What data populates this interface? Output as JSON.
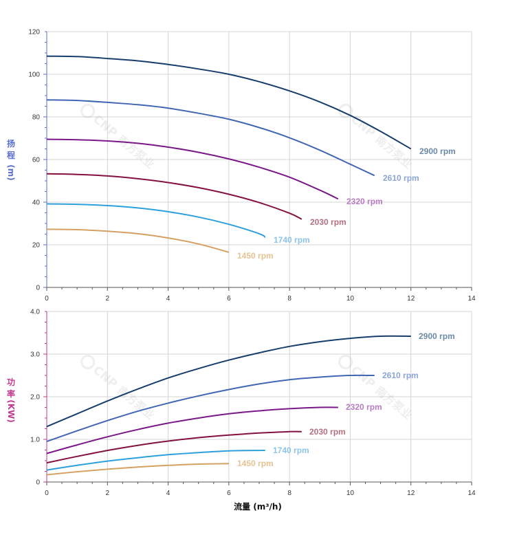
{
  "chart_data": [
    {
      "type": "line",
      "name": "head",
      "ylabel_lines": [
        "扬",
        "程",
        "(m)"
      ],
      "xlim": [
        0,
        14
      ],
      "ylim": [
        0,
        120
      ],
      "x_ticks": [
        0,
        2,
        4,
        6,
        8,
        10,
        12,
        14
      ],
      "y_ticks": [
        0,
        20,
        40,
        60,
        80,
        100,
        120
      ],
      "axis_color": "#5a6fd0",
      "grid": true,
      "series": [
        {
          "name": "2900 rpm",
          "color": "#163d6b",
          "label_color": "#6c89a8",
          "x": [
            0,
            1,
            2,
            3,
            4,
            5,
            6,
            7,
            8,
            9,
            10,
            11,
            12
          ],
          "y": [
            108.5,
            108.3,
            107.4,
            106.3,
            104.6,
            102.5,
            100.0,
            96.5,
            92.2,
            87.0,
            80.7,
            73.2,
            65.0
          ]
        },
        {
          "name": "2610 rpm",
          "color": "#3f66b2",
          "label_color": "#8ca5d6",
          "x": [
            0,
            1,
            2,
            3,
            4,
            5,
            6,
            7,
            8,
            9,
            10,
            10.8
          ],
          "y": [
            88.0,
            87.7,
            86.8,
            85.7,
            84.1,
            81.7,
            78.9,
            75.0,
            70.2,
            64.4,
            57.8,
            52.5
          ]
        },
        {
          "name": "2320 rpm",
          "color": "#7a1888",
          "label_color": "#b77cc3",
          "x": [
            0,
            1,
            2,
            3,
            4,
            5,
            6,
            7,
            8,
            9,
            9.6
          ],
          "y": [
            69.5,
            69.3,
            68.7,
            67.6,
            65.8,
            63.4,
            60.3,
            56.4,
            51.7,
            45.6,
            41.5
          ]
        },
        {
          "name": "2030 rpm",
          "color": "#84103f",
          "label_color": "#b4707f",
          "x": [
            0,
            1,
            2,
            3,
            4,
            5,
            6,
            7,
            8,
            8.4
          ],
          "y": [
            53.3,
            53.0,
            52.3,
            51.0,
            49.2,
            46.8,
            43.7,
            39.8,
            34.8,
            32.0
          ]
        },
        {
          "name": "1740 rpm",
          "color": "#2c9fdd",
          "label_color": "#8ec3e8",
          "x": [
            0,
            1,
            2,
            3,
            4,
            5,
            6,
            7,
            7.2
          ],
          "y": [
            39.2,
            39.0,
            38.4,
            37.3,
            35.5,
            33.0,
            29.6,
            25.2,
            23.5
          ]
        },
        {
          "name": "1450 rpm",
          "color": "#d5a061",
          "label_color": "#e6c293",
          "x": [
            0,
            1,
            2,
            3,
            4,
            5,
            6
          ],
          "y": [
            27.3,
            27.1,
            26.4,
            25.2,
            23.2,
            20.4,
            16.5
          ]
        }
      ]
    },
    {
      "type": "line",
      "name": "power",
      "xlabel": "流量 (m³/h)",
      "ylabel_lines": [
        "功",
        "率",
        "(KW)"
      ],
      "xlim": [
        0,
        14
      ],
      "ylim": [
        0,
        4.0
      ],
      "x_ticks": [
        0,
        2,
        4,
        6,
        8,
        10,
        12,
        14
      ],
      "y_ticks": [
        "0",
        "1.0",
        "2.0",
        "3.0",
        "4.0"
      ],
      "axis_color": "#c23a8e",
      "grid": true,
      "series": [
        {
          "name": "2900 rpm",
          "color": "#163d6b",
          "label_color": "#6c89a8",
          "x": [
            0,
            1,
            2,
            3,
            4,
            5,
            6,
            7,
            8,
            9,
            10,
            11,
            12
          ],
          "y": [
            1.3,
            1.6,
            1.9,
            2.18,
            2.44,
            2.66,
            2.86,
            3.03,
            3.18,
            3.29,
            3.37,
            3.42,
            3.42
          ]
        },
        {
          "name": "2610 rpm",
          "color": "#3f66b2",
          "label_color": "#8ca5d6",
          "x": [
            0,
            1,
            2,
            3,
            4,
            5,
            6,
            7,
            8,
            9,
            10,
            10.8
          ],
          "y": [
            0.95,
            1.2,
            1.44,
            1.66,
            1.85,
            2.02,
            2.17,
            2.3,
            2.4,
            2.46,
            2.5,
            2.5
          ]
        },
        {
          "name": "2320 rpm",
          "color": "#7a1888",
          "label_color": "#b77cc3",
          "x": [
            0,
            1,
            2,
            3,
            4,
            5,
            6,
            7,
            8,
            9,
            9.6
          ],
          "y": [
            0.67,
            0.87,
            1.06,
            1.23,
            1.38,
            1.5,
            1.6,
            1.67,
            1.72,
            1.75,
            1.75
          ]
        },
        {
          "name": "2030 rpm",
          "color": "#84103f",
          "label_color": "#b4707f",
          "x": [
            0,
            1,
            2,
            3,
            4,
            5,
            6,
            7,
            8,
            8.4
          ],
          "y": [
            0.45,
            0.6,
            0.74,
            0.86,
            0.96,
            1.04,
            1.1,
            1.15,
            1.18,
            1.18
          ]
        },
        {
          "name": "1740 rpm",
          "color": "#2c9fdd",
          "label_color": "#8ec3e8",
          "x": [
            0,
            1,
            2,
            3,
            4,
            5,
            6,
            7,
            7.2
          ],
          "y": [
            0.28,
            0.39,
            0.49,
            0.57,
            0.64,
            0.69,
            0.73,
            0.74,
            0.74
          ]
        },
        {
          "name": "1450 rpm",
          "color": "#d5a061",
          "label_color": "#e6c293",
          "x": [
            0,
            1,
            2,
            3,
            4,
            5,
            6
          ],
          "y": [
            0.17,
            0.24,
            0.3,
            0.35,
            0.39,
            0.42,
            0.43
          ]
        }
      ]
    }
  ],
  "watermark": {
    "brand": "CNP",
    "company": "南方泵业"
  }
}
